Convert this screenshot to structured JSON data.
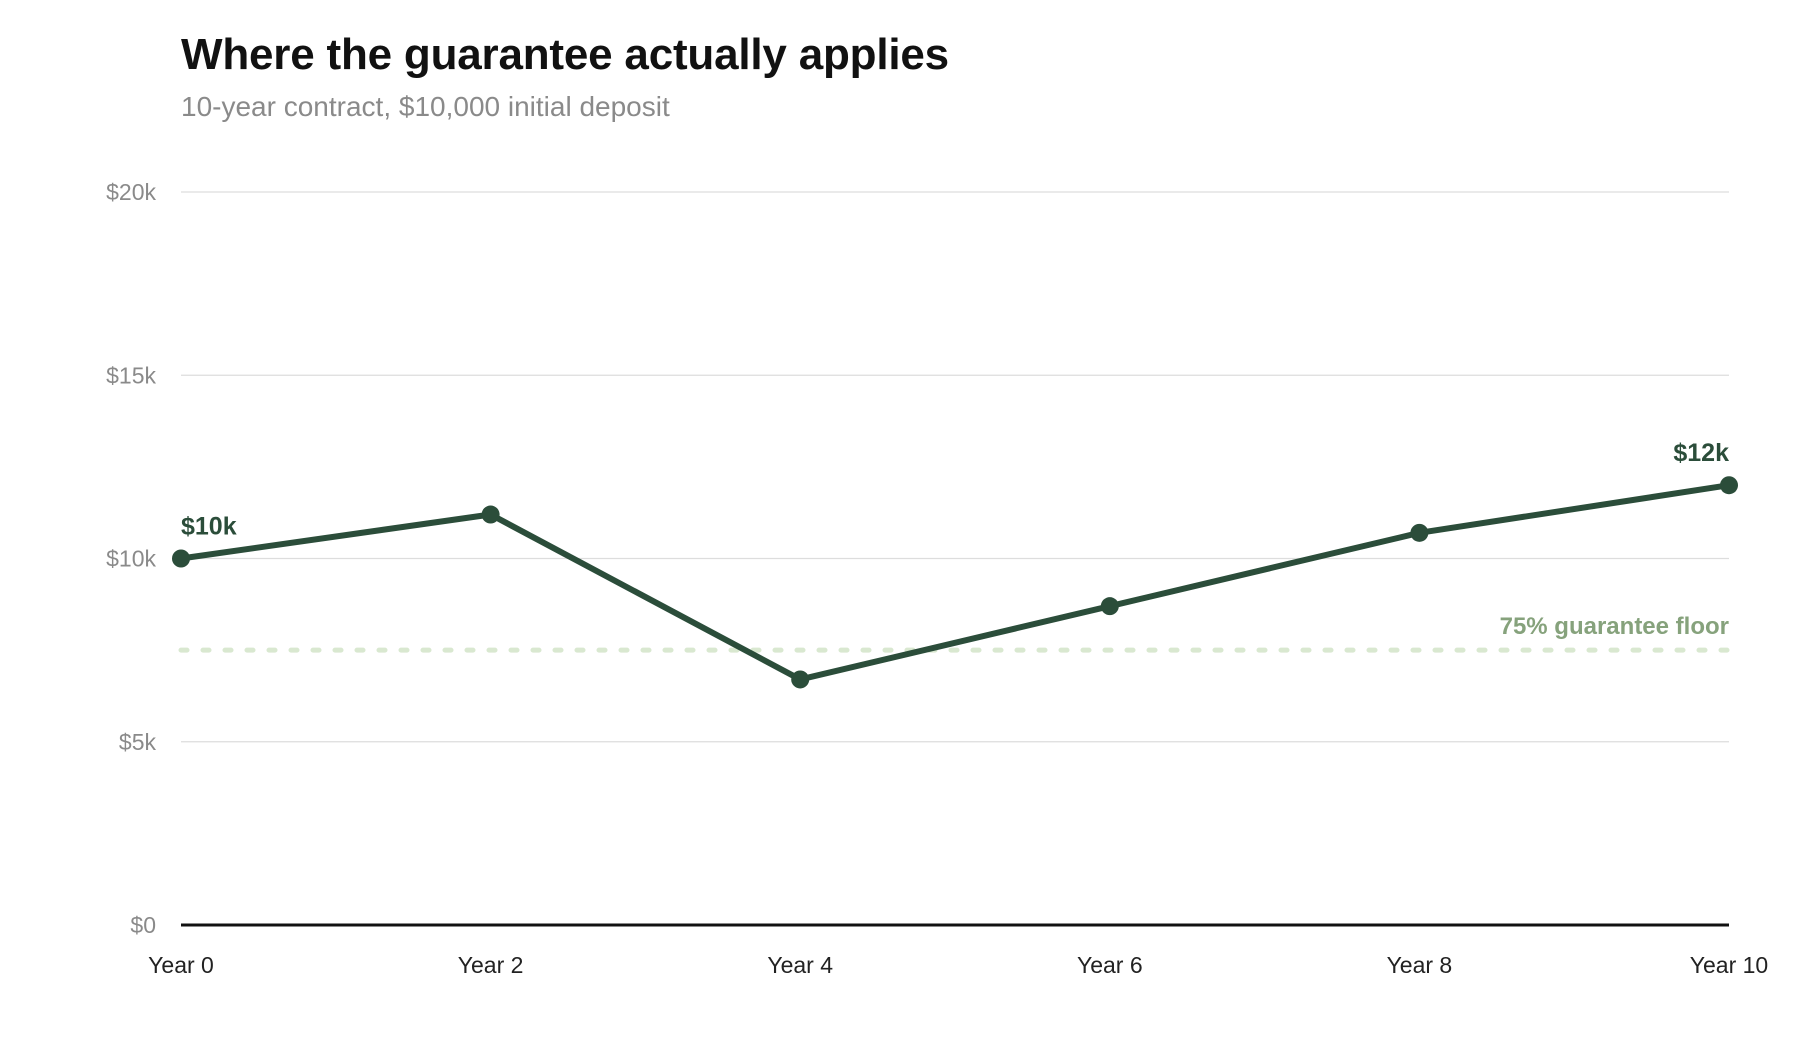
{
  "chart_data": {
    "type": "line",
    "title": "Where the guarantee actually applies",
    "subtitle": "10-year contract, $10,000 initial deposit",
    "xlabel": "",
    "ylabel": "",
    "x": [
      "Year 0",
      "Year 2",
      "Year 4",
      "Year 6",
      "Year 8",
      "Year 10"
    ],
    "series": [
      {
        "values": [
          10000,
          11200,
          6700,
          8700,
          10700,
          12000
        ],
        "color": "#2b4d3a"
      }
    ],
    "ylim": [
      0,
      20000
    ],
    "y_ticks": [
      {
        "value": 0,
        "label": "$0"
      },
      {
        "value": 5000,
        "label": "$5k"
      },
      {
        "value": 10000,
        "label": "$10k"
      },
      {
        "value": 15000,
        "label": "$15k"
      },
      {
        "value": 20000,
        "label": "$20k"
      }
    ],
    "data_labels": [
      {
        "index": 0,
        "text": "$10k"
      },
      {
        "index": 5,
        "text": "$12k"
      }
    ],
    "reference_line": {
      "value": 7500,
      "label": "75% guarantee floor",
      "style": "dotted",
      "color": "#d9e8d0",
      "label_color": "#86a27c"
    },
    "grid": true,
    "legend": "none",
    "colors": {
      "grid": "#dddddd",
      "axis": "#111111",
      "tick_y": "#8a8a8a",
      "tick_x": "#222222"
    }
  }
}
